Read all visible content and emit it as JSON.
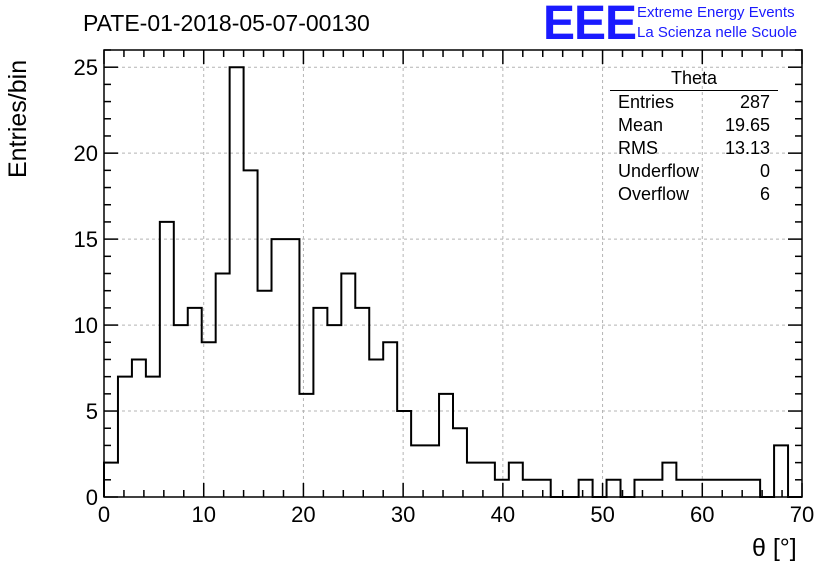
{
  "header": {
    "title": "PATE-01-2018-05-07-00130",
    "logo_text": "EEE",
    "logo_line1": "Extreme Energy Events",
    "logo_line2": "La Scienza nelle Scuole",
    "logo_color": "#1a1aff"
  },
  "stats": {
    "title": "Theta",
    "rows": [
      {
        "label": "Entries",
        "value": "287"
      },
      {
        "label": "Mean",
        "value": "19.65"
      },
      {
        "label": "RMS",
        "value": "13.13"
      },
      {
        "label": "Underflow",
        "value": "0"
      },
      {
        "label": "Overflow",
        "value": "6"
      }
    ]
  },
  "chart_data": {
    "type": "bar",
    "title": "PATE-01-2018-05-07-00130",
    "xlabel": "θ [°]",
    "ylabel": "Entries/bin",
    "xlim": [
      0,
      70
    ],
    "ylim": [
      0,
      26
    ],
    "bin_width": 1.4,
    "bin_edges_start": 0,
    "values": [
      2,
      7,
      8,
      7,
      16,
      10,
      11,
      9,
      13,
      25,
      19,
      12,
      15,
      15,
      6,
      11,
      10,
      13,
      11,
      8,
      9,
      5,
      3,
      3,
      6,
      4,
      2,
      2,
      1,
      2,
      1,
      1,
      0,
      0,
      1,
      0,
      1,
      0,
      1,
      1,
      2,
      1,
      1,
      1,
      1,
      1,
      1,
      0,
      3,
      0
    ],
    "xticks": [
      0,
      10,
      20,
      30,
      40,
      50,
      60,
      70
    ],
    "yticks": [
      0,
      5,
      10,
      15,
      20,
      25
    ],
    "grid": true,
    "line_color": "#000000"
  }
}
